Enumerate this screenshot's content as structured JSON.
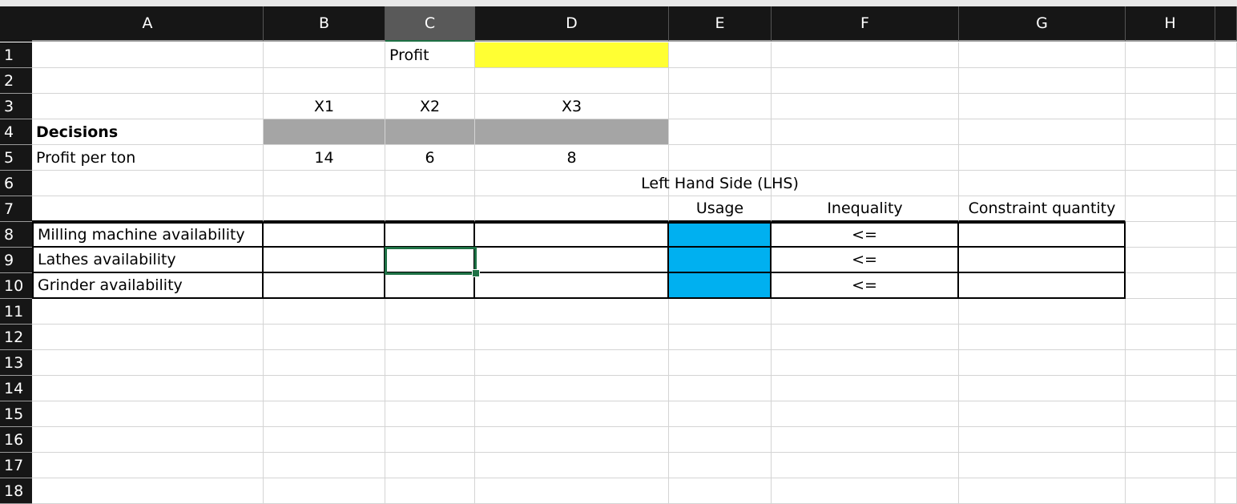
{
  "sheet": {
    "columns": [
      "A",
      "B",
      "C",
      "D",
      "E",
      "F",
      "G",
      "H"
    ],
    "selected_column": "C",
    "selected_cell": "C9",
    "colors": {
      "yellow": "#ffff33",
      "gray": "#a5a5a5",
      "blue": "#00b0f0",
      "selection": "#1e7145"
    },
    "rows": [
      {
        "num": "1",
        "cells": {
          "C": "Profit"
        }
      },
      {
        "num": "2",
        "cells": {}
      },
      {
        "num": "3",
        "cells": {
          "B": "X1",
          "C": "X2",
          "D": "X3"
        }
      },
      {
        "num": "4",
        "cells": {
          "A": "Decisions"
        }
      },
      {
        "num": "5",
        "cells": {
          "A": "Profit per ton",
          "B": "14",
          "C": "6",
          "D": "8"
        }
      },
      {
        "num": "6",
        "cells": {
          "E": "Left Hand Side (LHS)"
        }
      },
      {
        "num": "7",
        "cells": {
          "E": "Usage",
          "F": "Inequality",
          "G": "Constraint quantity"
        }
      },
      {
        "num": "8",
        "cells": {
          "A": "Milling machine availability",
          "F": "<="
        }
      },
      {
        "num": "9",
        "cells": {
          "A": "Lathes availability",
          "F": "<="
        }
      },
      {
        "num": "10",
        "cells": {
          "A": "Grinder availability",
          "F": "<="
        }
      },
      {
        "num": "11",
        "cells": {}
      },
      {
        "num": "12",
        "cells": {}
      },
      {
        "num": "13",
        "cells": {}
      },
      {
        "num": "14",
        "cells": {}
      },
      {
        "num": "15",
        "cells": {}
      },
      {
        "num": "16",
        "cells": {}
      },
      {
        "num": "17",
        "cells": {}
      },
      {
        "num": "18",
        "cells": {}
      }
    ]
  }
}
